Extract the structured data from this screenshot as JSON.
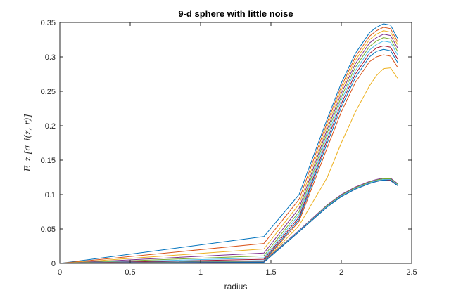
{
  "chart_data": {
    "type": "line",
    "title": "9-d sphere with little noise",
    "xlabel": "radius",
    "ylabel": "E_z [σ_i(z, r)]",
    "xlim": [
      0,
      2.5
    ],
    "ylim": [
      0,
      0.35
    ],
    "xticks": [
      0,
      0.5,
      1,
      1.5,
      2,
      2.5
    ],
    "xtick_labels": [
      "0",
      "0.5",
      "1",
      "1.5",
      "2",
      "2.5"
    ],
    "yticks": [
      0,
      0.05,
      0.1,
      0.15,
      0.2,
      0.25,
      0.3,
      0.35
    ],
    "ytick_labels": [
      "0",
      "0.05",
      "0.1",
      "0.15",
      "0.2",
      "0.25",
      "0.3",
      "0.35"
    ],
    "grid": false,
    "legend": "none",
    "x": [
      0,
      1.45,
      1.7,
      1.9,
      2.0,
      2.1,
      2.2,
      2.25,
      2.3,
      2.35,
      2.4
    ],
    "series": [
      {
        "color": "#0072BD",
        "values": [
          0,
          0.039,
          0.1,
          0.21,
          0.262,
          0.305,
          0.335,
          0.343,
          0.348,
          0.346,
          0.327
        ]
      },
      {
        "color": "#D95319",
        "values": [
          0,
          0.029,
          0.093,
          0.205,
          0.257,
          0.3,
          0.33,
          0.338,
          0.343,
          0.341,
          0.322
        ]
      },
      {
        "color": "#EDB120",
        "values": [
          0,
          0.021,
          0.086,
          0.2,
          0.252,
          0.295,
          0.325,
          0.333,
          0.338,
          0.336,
          0.318
        ]
      },
      {
        "color": "#7E2F8E",
        "values": [
          0,
          0.015,
          0.08,
          0.195,
          0.247,
          0.29,
          0.32,
          0.328,
          0.333,
          0.331,
          0.313
        ]
      },
      {
        "color": "#77AC30",
        "values": [
          0,
          0.011,
          0.075,
          0.19,
          0.242,
          0.285,
          0.315,
          0.323,
          0.328,
          0.326,
          0.308
        ]
      },
      {
        "color": "#4DBEEE",
        "values": [
          0,
          0.008,
          0.071,
          0.185,
          0.237,
          0.28,
          0.31,
          0.318,
          0.323,
          0.321,
          0.303
        ]
      },
      {
        "color": "#A2142F",
        "values": [
          0,
          0.006,
          0.067,
          0.18,
          0.232,
          0.275,
          0.305,
          0.313,
          0.316,
          0.314,
          0.297
        ]
      },
      {
        "color": "#0072BD",
        "values": [
          0,
          0.004,
          0.064,
          0.175,
          0.227,
          0.27,
          0.3,
          0.308,
          0.311,
          0.309,
          0.292
        ]
      },
      {
        "color": "#D95319",
        "values": [
          0,
          0.003,
          0.061,
          0.168,
          0.22,
          0.263,
          0.293,
          0.3,
          0.303,
          0.301,
          0.285
        ]
      },
      {
        "color": "#EDB120",
        "values": [
          0,
          0.002,
          0.055,
          0.125,
          0.175,
          0.22,
          0.258,
          0.273,
          0.283,
          0.284,
          0.269
        ]
      },
      {
        "color": "#7E2F8E",
        "values": [
          0,
          0.0035,
          0.048,
          0.085,
          0.1,
          0.111,
          0.119,
          0.122,
          0.124,
          0.124,
          0.116
        ]
      },
      {
        "color": "#77AC30",
        "values": [
          0,
          0.003,
          0.047,
          0.084,
          0.099,
          0.11,
          0.118,
          0.121,
          0.123,
          0.123,
          0.115
        ]
      },
      {
        "color": "#4DBEEE",
        "values": [
          0,
          0.0025,
          0.047,
          0.083,
          0.098,
          0.109,
          0.117,
          0.12,
          0.122,
          0.122,
          0.114
        ]
      },
      {
        "color": "#A2142F",
        "values": [
          0,
          0.002,
          0.046,
          0.082,
          0.097,
          0.108,
          0.116,
          0.119,
          0.121,
          0.121,
          0.113
        ]
      },
      {
        "color": "#0072BD",
        "values": [
          0,
          0.0015,
          0.046,
          0.082,
          0.097,
          0.108,
          0.116,
          0.119,
          0.121,
          0.12,
          0.113
        ]
      }
    ]
  }
}
